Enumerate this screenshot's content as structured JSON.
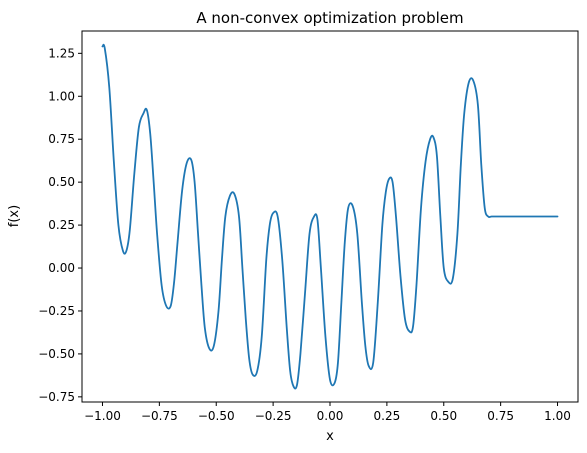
{
  "chart_data": {
    "type": "line",
    "title": "A non-convex optimization problem",
    "xlabel": "x",
    "ylabel": "f(x)",
    "xlim": [
      -1.09,
      1.09
    ],
    "ylim": [
      -0.78,
      1.38
    ],
    "xticks": [
      -1.0,
      -0.75,
      -0.5,
      -0.25,
      0.0,
      0.25,
      0.5,
      0.75,
      1.0
    ],
    "xtick_labels": [
      "−1.00",
      "−0.75",
      "−0.50",
      "−0.25",
      "0.00",
      "0.25",
      "0.50",
      "0.75",
      "1.00"
    ],
    "yticks": [
      -0.75,
      -0.5,
      -0.25,
      0.0,
      0.25,
      0.5,
      0.75,
      1.0,
      1.25
    ],
    "ytick_labels": [
      "−0.75",
      "−0.50",
      "−0.25",
      "0.00",
      "0.25",
      "0.50",
      "0.75",
      "1.00",
      "1.25"
    ],
    "grid": false,
    "legend": "none",
    "line_color": "#1f77b4",
    "series": [
      {
        "x": [
          -1.0,
          -0.99,
          -0.97,
          -0.95,
          -0.93,
          -0.91,
          -0.895,
          -0.88,
          -0.86,
          -0.84,
          -0.82,
          -0.805,
          -0.79,
          -0.775,
          -0.76,
          -0.74,
          -0.72,
          -0.7,
          -0.685,
          -0.67,
          -0.65,
          -0.63,
          -0.61,
          -0.595,
          -0.58,
          -0.565,
          -0.55,
          -0.53,
          -0.51,
          -0.49,
          -0.475,
          -0.46,
          -0.44,
          -0.42,
          -0.4,
          -0.385,
          -0.37,
          -0.355,
          -0.34,
          -0.32,
          -0.3,
          -0.28,
          -0.265,
          -0.25,
          -0.23,
          -0.21,
          -0.19,
          -0.175,
          -0.16,
          -0.145,
          -0.13,
          -0.11,
          -0.09,
          -0.07,
          -0.055,
          -0.04,
          -0.02,
          0.0,
          0.02,
          0.035,
          0.05,
          0.065,
          0.08,
          0.1,
          0.12,
          0.14,
          0.155,
          0.17,
          0.19,
          0.21,
          0.23,
          0.245,
          0.26,
          0.275,
          0.29,
          0.31,
          0.33,
          0.35,
          0.365,
          0.38,
          0.4,
          0.42,
          0.44,
          0.455,
          0.47,
          0.485,
          0.5,
          0.52,
          0.54,
          0.56,
          0.575,
          0.59,
          0.61,
          0.63,
          0.65,
          0.665,
          0.68,
          0.695,
          0.71,
          0.73,
          0.75,
          0.77,
          0.785,
          0.8,
          0.82,
          0.84,
          0.86,
          0.875,
          0.89,
          0.905,
          0.92,
          0.94,
          0.96,
          0.98,
          0.99,
          1.0
        ],
        "y": [
          1.29,
          1.28,
          1.05,
          0.62,
          0.25,
          0.1,
          0.1,
          0.22,
          0.55,
          0.82,
          0.9,
          0.92,
          0.78,
          0.5,
          0.2,
          -0.1,
          -0.22,
          -0.22,
          -0.08,
          0.15,
          0.45,
          0.61,
          0.63,
          0.5,
          0.2,
          -0.1,
          -0.35,
          -0.47,
          -0.45,
          -0.25,
          0.05,
          0.3,
          0.42,
          0.43,
          0.3,
          0.0,
          -0.3,
          -0.53,
          -0.62,
          -0.6,
          -0.4,
          0.05,
          0.25,
          0.32,
          0.3,
          0.05,
          -0.35,
          -0.6,
          -0.69,
          -0.68,
          -0.5,
          -0.15,
          0.2,
          0.3,
          0.28,
          0.0,
          -0.4,
          -0.65,
          -0.67,
          -0.55,
          -0.2,
          0.15,
          0.35,
          0.36,
          0.2,
          -0.2,
          -0.45,
          -0.57,
          -0.55,
          -0.2,
          0.25,
          0.44,
          0.52,
          0.5,
          0.3,
          -0.05,
          -0.3,
          -0.37,
          -0.34,
          -0.1,
          0.35,
          0.62,
          0.75,
          0.76,
          0.65,
          0.3,
          0.0,
          -0.08,
          -0.06,
          0.2,
          0.6,
          0.9,
          1.08,
          1.09,
          0.95,
          0.6,
          0.35,
          0.3,
          0.3,
          0.3,
          0.3,
          0.3,
          0.3,
          0.3,
          0.3,
          0.3,
          0.3,
          0.3,
          0.3,
          0.3,
          0.3,
          0.3,
          0.3,
          0.3,
          0.3,
          0.3
        ]
      }
    ]
  }
}
